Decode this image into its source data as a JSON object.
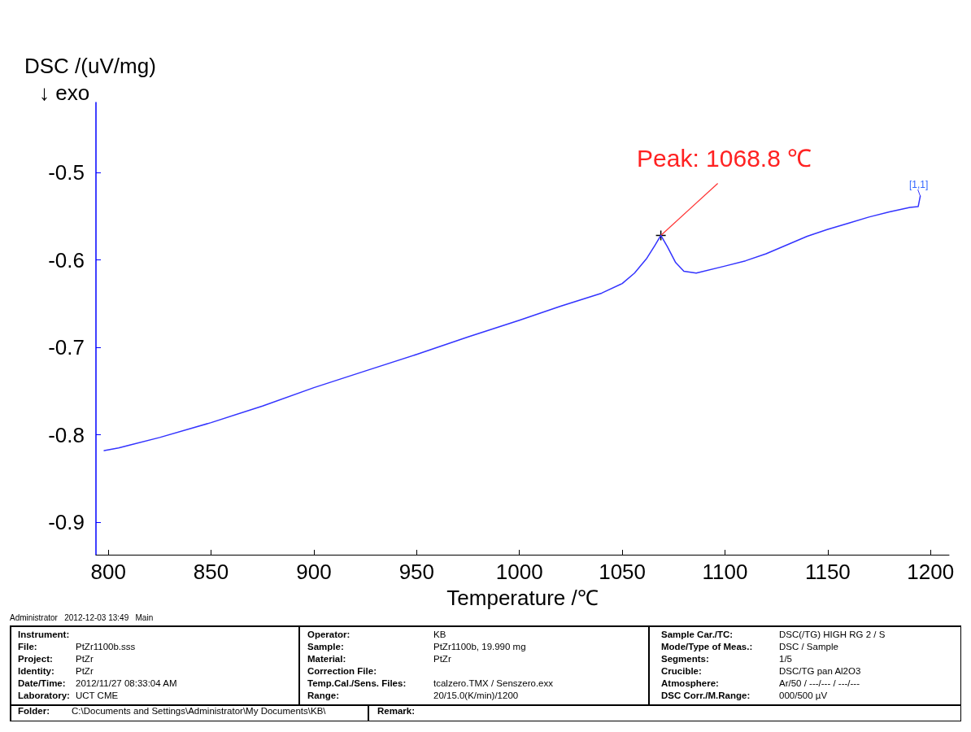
{
  "chart_data": {
    "type": "line",
    "ylabel": "DSC /(uV/mg)",
    "xlabel": "Temperature /℃",
    "xlim": [
      794,
      1209
    ],
    "xticks": [
      800,
      850,
      900,
      950,
      1000,
      1050,
      1100,
      1150,
      1200
    ],
    "ylim": [
      -0.937,
      -0.42
    ],
    "yticks": [
      -0.5,
      -0.6,
      -0.7,
      -0.8,
      -0.9
    ],
    "grid": false,
    "series": [
      {
        "color": "#3333ff",
        "x": [
          798,
          805,
          810,
          825,
          850,
          875,
          900,
          925,
          950,
          975,
          1000,
          1020,
          1040,
          1050,
          1056,
          1062,
          1066,
          1068.8,
          1072,
          1076,
          1080,
          1086,
          1100,
          1110,
          1120,
          1130,
          1140,
          1150,
          1160,
          1170,
          1180,
          1190,
          1194,
          1195
        ],
        "values": [
          -0.818,
          -0.815,
          -0.812,
          -0.803,
          -0.786,
          -0.767,
          -0.746,
          -0.727,
          -0.708,
          -0.688,
          -0.669,
          -0.653,
          -0.638,
          -0.627,
          -0.615,
          -0.598,
          -0.583,
          -0.572,
          -0.585,
          -0.603,
          -0.613,
          -0.615,
          -0.607,
          -0.601,
          -0.593,
          -0.583,
          -0.573,
          -0.565,
          -0.558,
          -0.551,
          -0.545,
          -0.54,
          -0.539,
          -0.527
        ]
      }
    ],
    "annotations": [
      {
        "text": "Peak: 1068.8 ℃",
        "x": 1068.8,
        "y": -0.572
      },
      {
        "text": "[1,1]",
        "x": 1195,
        "y": -0.527
      },
      "↓ exo",
      "Administrator   2012-12-03 13:49   Main",
      "Instrument:",
      "File:",
      "Project:",
      "Identity:",
      "Date/Time:",
      "Laboratory:",
      "PtZr1100b.sss",
      "PtZr",
      "PtZr",
      "2012/11/27 08:33:04 AM",
      "UCT CME",
      "Operator:",
      "Sample:",
      "Material:",
      "Correction File:",
      "Temp.Cal./Sens. Files:",
      "Range:",
      "KB",
      "PtZr1100b, 19.990 mg",
      "PtZr",
      "tcalzero.TMX / Senszero.exx",
      "20/15.0(K/min)/1200",
      "Sample Car./TC:",
      "Mode/Type of Meas.:",
      "Segments:",
      "Crucible:",
      "Atmosphere:",
      "DSC Corr./M.Range:",
      "DSC(/TG) HIGH RG 2 / S",
      "DSC / Sample",
      "1/5",
      "DSC/TG pan Al2O3",
      "Ar/50 / ---/--- / ---/---",
      "000/500 µV",
      "Folder:",
      "C:\\Documents and Settings\\Administrator\\My Documents\\KB\\",
      "Remark:"
    ]
  }
}
